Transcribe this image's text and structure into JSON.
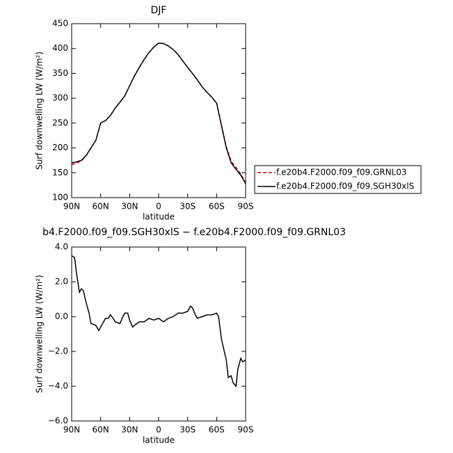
{
  "chart_data": [
    {
      "type": "line",
      "title": "DJF",
      "xlabel": "latitude",
      "ylabel": "Surf downwelling LW (W/m²)",
      "x": [
        90,
        85,
        80,
        75,
        70,
        65,
        60,
        55,
        50,
        45,
        40,
        35,
        30,
        25,
        20,
        15,
        10,
        5,
        0,
        -5,
        -10,
        -15,
        -20,
        -25,
        -30,
        -35,
        -40,
        -45,
        -50,
        -55,
        -60,
        -65,
        -70,
        -75,
        -80,
        -85,
        -90
      ],
      "series": [
        {
          "name": "f.e20b4.F2000.f09_f09.GRNL03",
          "color": "#e00000",
          "linestyle": "dashed",
          "values": [
            166.5,
            169.5,
            173.4,
            184.2,
            200.4,
            215.5,
            250.6,
            255.1,
            264.9,
            280.3,
            292.4,
            304.8,
            325.2,
            345.5,
            362.3,
            378.3,
            392.1,
            403.2,
            411.1,
            410.3,
            405.1,
            398,
            387.8,
            374.8,
            361.7,
            349.5,
            337.1,
            323,
            311.9,
            301.9,
            289.8,
            246.3,
            202.5,
            173.4,
            161,
            147.4,
            130.5
          ]
        },
        {
          "name": "f.e20b4.F2000.f09_f09.SGH30xlS",
          "color": "#000000",
          "linestyle": "solid",
          "values": [
            170,
            172,
            175,
            185,
            200,
            215,
            250,
            255,
            265,
            280,
            292,
            305,
            325,
            345,
            362,
            378,
            392,
            403,
            411,
            410,
            405,
            398,
            388,
            375,
            362,
            350,
            337,
            323,
            312,
            302,
            290,
            245,
            200,
            170,
            157,
            145,
            128
          ]
        }
      ],
      "xlim": [
        90,
        -90
      ],
      "xticks": [
        {
          "value": 90,
          "label": "90N"
        },
        {
          "value": 60,
          "label": "60N"
        },
        {
          "value": 30,
          "label": "30N"
        },
        0,
        {
          "value": -30,
          "label": "30S"
        },
        {
          "value": -60,
          "label": "60S"
        },
        {
          "value": -90,
          "label": "90S"
        }
      ],
      "ylim": [
        100,
        450
      ],
      "yticks": [
        100,
        150,
        200,
        250,
        300,
        350,
        400,
        450
      ],
      "legend": "right"
    },
    {
      "type": "line",
      "title": "b4.F2000.f09_f09.SGH30xlS − f.e20b4.F2000.f09_f09.GRNL03",
      "xlabel": "latitude",
      "ylabel": "Surf downwelling LW (W/m²)",
      "x": [
        90,
        87,
        85,
        82,
        80,
        78,
        75,
        72,
        70,
        65,
        62,
        60,
        57,
        55,
        52,
        50,
        47,
        45,
        40,
        37,
        35,
        32,
        30,
        27,
        25,
        20,
        15,
        10,
        5,
        0,
        -5,
        -10,
        -15,
        -20,
        -25,
        -30,
        -33,
        -35,
        -38,
        -40,
        -45,
        -50,
        -55,
        -60,
        -62,
        -65,
        -70,
        -72,
        -75,
        -77,
        -80,
        -82,
        -85,
        -87,
        -90
      ],
      "series": [
        {
          "color": "#000000",
          "linestyle": "solid",
          "values": [
            3.5,
            3.4,
            2.5,
            1.4,
            1.6,
            1.5,
            0.8,
            0.2,
            -0.4,
            -0.5,
            -0.8,
            -0.6,
            -0.3,
            -0.1,
            -0.1,
            0.1,
            -0.1,
            -0.3,
            -0.4,
            0.0,
            0.2,
            0.2,
            -0.2,
            -0.6,
            -0.5,
            -0.3,
            -0.3,
            -0.1,
            -0.2,
            -0.1,
            -0.3,
            -0.1,
            0.0,
            0.2,
            0.2,
            0.3,
            0.6,
            0.5,
            0.1,
            -0.1,
            0.0,
            0.1,
            0.1,
            0.2,
            0.0,
            -1.3,
            -2.5,
            -3.5,
            -3.4,
            -3.8,
            -4.0,
            -3.0,
            -2.4,
            -2.6,
            -2.5
          ]
        }
      ],
      "xlim": [
        90,
        -90
      ],
      "xticks": [
        {
          "value": 90,
          "label": "90N"
        },
        {
          "value": 60,
          "label": "60N"
        },
        {
          "value": 30,
          "label": "30N"
        },
        0,
        {
          "value": -30,
          "label": "30S"
        },
        {
          "value": -60,
          "label": "60S"
        },
        {
          "value": -90,
          "label": "90S"
        }
      ],
      "ylim": [
        -6,
        4
      ],
      "yticks": [
        {
          "value": -6,
          "label": "−6.0"
        },
        {
          "value": -4,
          "label": "−4.0"
        },
        {
          "value": -2,
          "label": "−2.0"
        },
        {
          "value": 0,
          "label": "0.0"
        },
        {
          "value": 2,
          "label": "2.0"
        },
        {
          "value": 4,
          "label": "4.0"
        }
      ]
    }
  ]
}
